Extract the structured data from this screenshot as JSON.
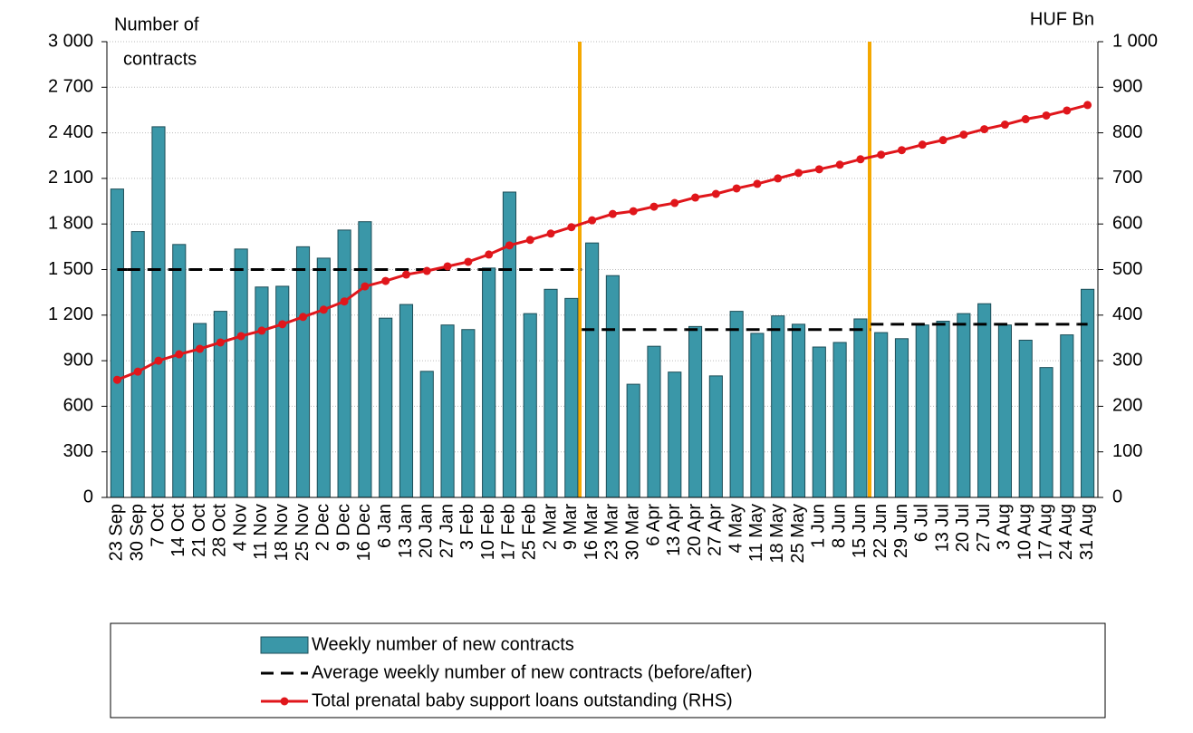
{
  "chart_data": {
    "type": "bar",
    "y_label_lines": [
      "Number of",
      "contracts"
    ],
    "y2_label": "HUF Bn",
    "categories": [
      "23 Sep",
      "30 Sep",
      "7 Oct",
      "14 Oct",
      "21 Oct",
      "28 Oct",
      "4 Nov",
      "11 Nov",
      "18 Nov",
      "25 Nov",
      "2 Dec",
      "9 Dec",
      "16 Dec",
      "6 Jan",
      "13 Jan",
      "20 Jan",
      "27 Jan",
      "3 Feb",
      "10 Feb",
      "17 Feb",
      "25 Feb",
      "2 Mar",
      "9 Mar",
      "16 Mar",
      "23 Mar",
      "30 Mar",
      "6 Apr",
      "13 Apr",
      "20 Apr",
      "27 Apr",
      "4 May",
      "11 May",
      "18 May",
      "25 May",
      "1 Jun",
      "8 Jun",
      "15 Jun",
      "22 Jun",
      "29 Jun",
      "6 Jul",
      "13 Jul",
      "20 Jul",
      "27 Jul",
      "3 Aug",
      "10 Aug",
      "17 Aug",
      "24 Aug",
      "31 Aug"
    ],
    "series": [
      {
        "name": "Weekly number of new contracts",
        "type": "bar",
        "color": "#3a97a8",
        "values": [
          2030,
          1750,
          2440,
          1665,
          1145,
          1225,
          1635,
          1385,
          1390,
          1650,
          1575,
          1760,
          1815,
          1180,
          1270,
          830,
          1135,
          1105,
          1510,
          2010,
          1210,
          1370,
          1310,
          1675,
          1460,
          745,
          995,
          825,
          1125,
          800,
          1225,
          1080,
          1195,
          1140,
          990,
          1020,
          1175,
          1085,
          1045,
          1135,
          1160,
          1210,
          1275,
          1135,
          1035,
          855,
          1070,
          1370
        ]
      },
      {
        "name": "Average weekly number of new contracts (before/after)",
        "type": "dash",
        "color": "#000000",
        "values": [
          1500,
          1500,
          1500,
          1500,
          1500,
          1500,
          1500,
          1500,
          1500,
          1500,
          1500,
          1500,
          1500,
          1500,
          1500,
          1500,
          1500,
          1500,
          1500,
          1500,
          1500,
          1500,
          1500,
          1105,
          1105,
          1105,
          1105,
          1105,
          1105,
          1105,
          1105,
          1105,
          1105,
          1105,
          1105,
          1105,
          1105,
          1140,
          1140,
          1140,
          1140,
          1140,
          1140,
          1140,
          1140,
          1140,
          1140,
          1140
        ]
      },
      {
        "name": "Total prenatal baby support loans outstanding (RHS)",
        "type": "line",
        "axis": "y2",
        "color": "#e0161b",
        "values": [
          258,
          276,
          300,
          314,
          326,
          340,
          354,
          366,
          380,
          396,
          412,
          430,
          463,
          475,
          489,
          497,
          507,
          517,
          533,
          553,
          565,
          579,
          593,
          608,
          622,
          628,
          638,
          646,
          658,
          666,
          678,
          688,
          700,
          712,
          720,
          730,
          742,
          752,
          762,
          774,
          784,
          796,
          808,
          818,
          830,
          838,
          849,
          861
        ]
      }
    ],
    "ylim": [
      0,
      3000
    ],
    "yticks": [
      0,
      300,
      600,
      900,
      {
        "value": 1200,
        "label": "1 200"
      },
      {
        "value": 1500,
        "label": "1 500"
      },
      {
        "value": 1800,
        "label": "1 800"
      },
      {
        "value": 2100,
        "label": "2 100"
      },
      {
        "value": 2400,
        "label": "2 400"
      },
      {
        "value": 2700,
        "label": "2 700"
      },
      {
        "value": 3000,
        "label": "3 000"
      }
    ],
    "y2lim": [
      0,
      1000
    ],
    "y2ticks": [
      0,
      100,
      200,
      300,
      400,
      500,
      600,
      700,
      800,
      900,
      {
        "value": 1000,
        "label": "1 000"
      }
    ],
    "grid": true
  }
}
